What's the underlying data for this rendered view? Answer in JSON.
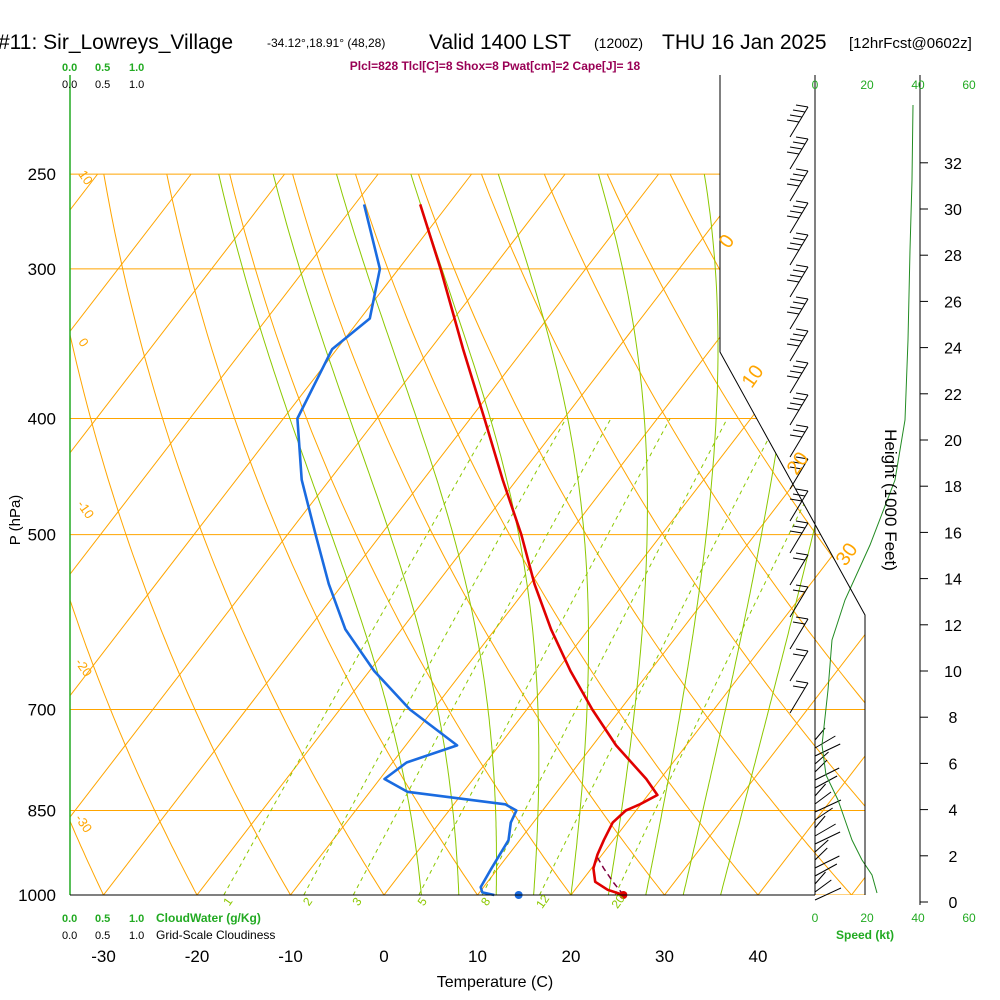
{
  "header": {
    "station": "#11: Sir_Lowreys_Village",
    "coords": "-34.12°,18.91° (48,28)",
    "valid": "Valid 1400 LST",
    "utc": "(1200Z)",
    "date": "THU 16 Jan 2025",
    "forecast": "[12hrFcst@0602z]",
    "indices": "Plcl=828 Tlcl[C]=8 Shox=8 Pwat[cm]=2 Cape[J]= 18"
  },
  "colors": {
    "isotherm": "#ffa500",
    "mixing_ratio": "#8cc800",
    "moist_adiabat": "#8cc800",
    "temperature": "#e00000",
    "dewpoint": "#1a6be0",
    "parcel": "#800040",
    "height": "#228b22",
    "green_text": "#22aa22",
    "index_text": "#990055"
  },
  "chart_data": {
    "type": "skew-t",
    "xlabel": "Temperature (C)",
    "ylabel": "P (hPa)",
    "y2label": "Height (1000 Feet)",
    "xlim": [
      -35,
      47
    ],
    "ylim_hpa": [
      1000,
      250
    ],
    "x_ticks": [
      "-30",
      "-20",
      "-10",
      "0",
      "10",
      "20",
      "30",
      "40"
    ],
    "p_ticks": [
      "250",
      "300",
      "400",
      "500",
      "700",
      "850",
      "1000"
    ],
    "height_ticks": [
      "0",
      "2",
      "4",
      "6",
      "8",
      "10",
      "12",
      "14",
      "16",
      "18",
      "20",
      "22",
      "24",
      "26",
      "28",
      "30",
      "32"
    ],
    "mixing_ratio_labels": [
      "1",
      "2",
      "3",
      "5",
      "8",
      "12",
      "20"
    ],
    "isotherm_labels_left": [
      "10",
      "0",
      "-10",
      "-20",
      "-30"
    ],
    "isotherm_labels_right": [
      "0",
      "10",
      "20",
      "30"
    ],
    "cloud_water_ticks": [
      "0.0",
      "0.5",
      "1.0"
    ],
    "cloudiness_ticks": [
      "0.0",
      "0.5",
      "1.0"
    ],
    "cloud_water_label": "CloudWater (g/Kg)",
    "cloudiness_label": "Grid-Scale Cloudiness",
    "speed_ticks": [
      "0",
      "20",
      "40",
      "60"
    ],
    "speed_label": "Speed (kt)",
    "temperature": [
      {
        "p": 1000,
        "t": 25.6
      },
      {
        "p": 990,
        "t": 23.5
      },
      {
        "p": 975,
        "t": 21.5
      },
      {
        "p": 950,
        "t": 20.2
      },
      {
        "p": 925,
        "t": 19.5
      },
      {
        "p": 900,
        "t": 19.0
      },
      {
        "p": 870,
        "t": 18.5
      },
      {
        "p": 850,
        "t": 18.9
      },
      {
        "p": 840,
        "t": 19.9
      },
      {
        "p": 825,
        "t": 21.0
      },
      {
        "p": 800,
        "t": 18.5
      },
      {
        "p": 750,
        "t": 12.5
      },
      {
        "p": 700,
        "t": 7.0
      },
      {
        "p": 650,
        "t": 1.5
      },
      {
        "p": 600,
        "t": -4.0
      },
      {
        "p": 550,
        "t": -9.5
      },
      {
        "p": 500,
        "t": -15.0
      },
      {
        "p": 450,
        "t": -21.5
      },
      {
        "p": 400,
        "t": -28.5
      },
      {
        "p": 350,
        "t": -36.5
      },
      {
        "p": 300,
        "t": -45.5
      },
      {
        "p": 265,
        "t": -53.0
      }
    ],
    "dewpoint": [
      {
        "p": 1000,
        "t": 11.8
      },
      {
        "p": 995,
        "t": 10.3
      },
      {
        "p": 985,
        "t": 9.7
      },
      {
        "p": 950,
        "t": 9.3
      },
      {
        "p": 900,
        "t": 8.8
      },
      {
        "p": 870,
        "t": 7.6
      },
      {
        "p": 850,
        "t": 7.2
      },
      {
        "p": 840,
        "t": 5.5
      },
      {
        "p": 820,
        "t": -6.0
      },
      {
        "p": 800,
        "t": -9.5
      },
      {
        "p": 775,
        "t": -8.5
      },
      {
        "p": 750,
        "t": -4.5
      },
      {
        "p": 700,
        "t": -12.5
      },
      {
        "p": 650,
        "t": -19.5
      },
      {
        "p": 600,
        "t": -26.0
      },
      {
        "p": 550,
        "t": -31.5
      },
      {
        "p": 500,
        "t": -37.0
      },
      {
        "p": 450,
        "t": -43.0
      },
      {
        "p": 400,
        "t": -48.5
      },
      {
        "p": 350,
        "t": -50.5
      },
      {
        "p": 330,
        "t": -49.0
      },
      {
        "p": 300,
        "t": -52.0
      },
      {
        "p": 265,
        "t": -59.0
      }
    ],
    "parcel": [
      {
        "p": 1000,
        "t": 25.6
      },
      {
        "p": 975,
        "t": 23.4
      },
      {
        "p": 950,
        "t": 21.3
      },
      {
        "p": 925,
        "t": 19.3
      }
    ],
    "surface_temperature": 25.6,
    "surface_dewpoint": 11.8
  }
}
